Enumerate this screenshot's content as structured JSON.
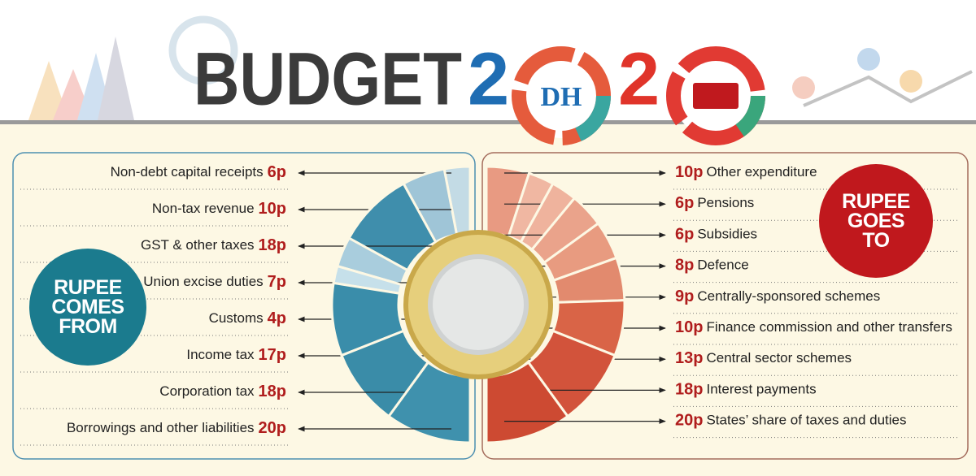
{
  "header": {
    "title": "BUDGET",
    "year_left": "2",
    "logo": "DH",
    "year_right": "2"
  },
  "chart_data": [
    {
      "type": "half-donut",
      "title": "RUPEE COMES FROM",
      "categories": [
        "Non-debt capital receipts",
        "Non-tax revenue",
        "GST & other taxes",
        "Union excise duties",
        "Customs",
        "Income tax",
        "Corporation tax",
        "Borrowings and other liabilities"
      ],
      "values": [
        6,
        10,
        18,
        7,
        4,
        17,
        18,
        20
      ],
      "value_labels": [
        "6p",
        "10p",
        "18p",
        "7p",
        "4p",
        "17p",
        "18p",
        "20p"
      ],
      "colors": [
        "#c3dbe5",
        "#9fc5d7",
        "#3f8eac",
        "#a9cddd",
        "#c6e0ea",
        "#3a8daa",
        "#3a8ca8",
        "#3f91ad"
      ]
    },
    {
      "type": "half-donut",
      "title": "RUPEE GOES TO",
      "categories": [
        "Other expenditure",
        "Pensions",
        "Subsidies",
        "Defence",
        "Centrally-sponsored schemes",
        "Finance commission and other transfers",
        "Central sector schemes",
        "Interest payments",
        "States’ share of taxes and duties"
      ],
      "values": [
        10,
        6,
        6,
        8,
        9,
        10,
        13,
        18,
        20
      ],
      "value_labels": [
        "10p",
        "6p",
        "6p",
        "8p",
        "9p",
        "10p",
        "13p",
        "18p",
        "20p"
      ],
      "colors": [
        "#e89a82",
        "#f0b7a2",
        "#efb39d",
        "#eaa38b",
        "#e89b80",
        "#e28a6e",
        "#d96447",
        "#d2533b",
        "#cd4a32"
      ]
    }
  ]
}
